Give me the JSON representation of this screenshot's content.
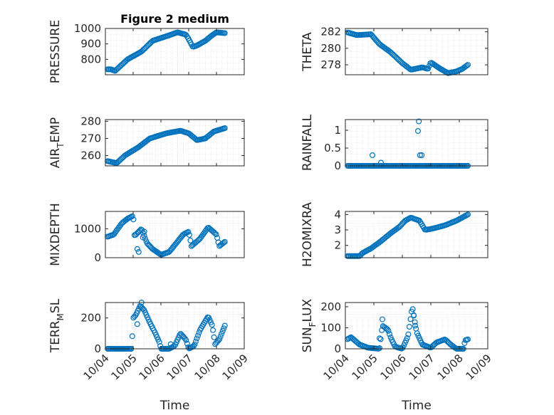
{
  "figure": {
    "background": "#ffffff",
    "marker_color": "#0072BD",
    "marker": "circle-open"
  },
  "chart_data": [
    {
      "type": "scatter",
      "title": "Figure 2 medium",
      "ylabel": "PRESSURE",
      "ylim": [
        700,
        1000
      ],
      "yticks": [
        800,
        900,
        1000
      ],
      "xlim": [
        0,
        5
      ],
      "x_start": 0.08,
      "x_end": 4.3,
      "profile": [
        [
          0,
          735
        ],
        [
          0.2,
          735
        ],
        [
          0.35,
          725
        ],
        [
          0.8,
          800
        ],
        [
          1.3,
          850
        ],
        [
          1.7,
          920
        ],
        [
          2.2,
          950
        ],
        [
          2.6,
          975
        ],
        [
          2.9,
          960
        ],
        [
          3.0,
          930
        ],
        [
          3.15,
          880
        ],
        [
          3.3,
          890
        ],
        [
          3.6,
          920
        ],
        [
          3.8,
          950
        ],
        [
          4.0,
          975
        ],
        [
          4.3,
          970
        ]
      ],
      "show_xticks": false
    },
    {
      "type": "scatter",
      "title": "",
      "ylabel": "THETA",
      "ylim": [
        276.8,
        282.4
      ],
      "yticks": [
        278,
        280,
        282
      ],
      "xlim": [
        0,
        5
      ],
      "x_start": 0.08,
      "x_end": 4.3,
      "profile": [
        [
          0,
          282
        ],
        [
          0.4,
          281.6
        ],
        [
          0.9,
          281.7
        ],
        [
          1.2,
          280.5
        ],
        [
          1.6,
          279.5
        ],
        [
          2.0,
          278.2
        ],
        [
          2.3,
          277.4
        ],
        [
          2.7,
          277.7
        ],
        [
          2.9,
          277.5
        ],
        [
          3.0,
          278.3
        ],
        [
          3.3,
          277.6
        ],
        [
          3.6,
          277
        ],
        [
          3.9,
          277.2
        ],
        [
          4.1,
          277.5
        ],
        [
          4.3,
          278
        ]
      ],
      "show_xticks": false
    },
    {
      "type": "scatter",
      "title": "",
      "ylabel": "AIR_TEMP",
      "ylim": [
        254,
        281
      ],
      "yticks": [
        260,
        270,
        280
      ],
      "xlim": [
        0,
        5
      ],
      "x_start": 0.08,
      "x_end": 4.3,
      "profile": [
        [
          0,
          257
        ],
        [
          0.3,
          256
        ],
        [
          0.4,
          255.5
        ],
        [
          0.7,
          260
        ],
        [
          1.2,
          265
        ],
        [
          1.6,
          270
        ],
        [
          2.2,
          273
        ],
        [
          2.7,
          274.5
        ],
        [
          3.0,
          273
        ],
        [
          3.3,
          269
        ],
        [
          3.6,
          270
        ],
        [
          3.9,
          274
        ],
        [
          4.3,
          276
        ]
      ],
      "show_xticks": false
    },
    {
      "type": "scatter",
      "title": "",
      "ylabel": "RAINFALL",
      "ylim": [
        0,
        1.3
      ],
      "yticks": [
        0,
        0.5,
        1
      ],
      "xlim": [
        0,
        5
      ],
      "x_start": 0.08,
      "x_end": 4.3,
      "profile": [
        [
          0,
          0
        ],
        [
          4.3,
          0
        ]
      ],
      "extra_points": [
        [
          0.95,
          0.3
        ],
        [
          1.25,
          0.09
        ],
        [
          2.58,
          1.25
        ],
        [
          2.55,
          0.98
        ],
        [
          2.62,
          0.3
        ],
        [
          2.68,
          0.3
        ]
      ],
      "show_xticks": false
    },
    {
      "type": "scatter",
      "title": "",
      "ylabel": "MIXDEPTH",
      "ylim": [
        0,
        1600
      ],
      "yticks": [
        0,
        1000
      ],
      "xlim": [
        0,
        5
      ],
      "x_start": 0.08,
      "x_end": 4.3,
      "profile": [
        [
          0,
          700
        ],
        [
          0.3,
          800
        ],
        [
          0.6,
          1200
        ],
        [
          0.8,
          1350
        ],
        [
          1.0,
          1450
        ],
        [
          1.05,
          750
        ],
        [
          1.3,
          1000
        ],
        [
          1.5,
          500
        ],
        [
          1.7,
          300
        ],
        [
          2.0,
          100
        ],
        [
          2.3,
          200
        ],
        [
          2.8,
          800
        ],
        [
          3.0,
          900
        ],
        [
          3.1,
          400
        ],
        [
          3.4,
          650
        ],
        [
          3.7,
          1050
        ],
        [
          4.0,
          800
        ],
        [
          4.1,
          400
        ],
        [
          4.3,
          550
        ]
      ],
      "extra_points": [
        [
          1.15,
          300
        ],
        [
          1.2,
          200
        ],
        [
          1.4,
          900
        ],
        [
          1.35,
          700
        ]
      ],
      "show_xticks": false
    },
    {
      "type": "scatter",
      "title": "",
      "ylabel": "H2OMIXRA",
      "ylim": [
        1.2,
        4.2
      ],
      "yticks": [
        2,
        3,
        4
      ],
      "xlim": [
        0,
        5
      ],
      "x_start": 0.08,
      "x_end": 4.3,
      "profile": [
        [
          0,
          1.3
        ],
        [
          0.5,
          1.3
        ],
        [
          0.6,
          1.5
        ],
        [
          0.9,
          1.8
        ],
        [
          1.2,
          2.2
        ],
        [
          1.6,
          2.8
        ],
        [
          1.9,
          3.2
        ],
        [
          2.1,
          3.6
        ],
        [
          2.3,
          3.8
        ],
        [
          2.6,
          3.6
        ],
        [
          2.8,
          3.0
        ],
        [
          3.1,
          3.1
        ],
        [
          3.5,
          3.3
        ],
        [
          3.9,
          3.6
        ],
        [
          4.3,
          4.0
        ]
      ],
      "show_xticks": false
    },
    {
      "type": "scatter",
      "title": "",
      "ylabel": "TERR_MSL",
      "ylim": [
        0,
        300
      ],
      "yticks": [
        0,
        200
      ],
      "xlim": [
        0,
        5
      ],
      "x_start": 0.08,
      "x_end": 4.3,
      "profile": [
        [
          0,
          0
        ],
        [
          0.95,
          0
        ],
        [
          1.0,
          200
        ],
        [
          1.1,
          220
        ],
        [
          1.25,
          280
        ],
        [
          1.4,
          250
        ],
        [
          1.6,
          170
        ],
        [
          1.8,
          100
        ],
        [
          1.95,
          40
        ],
        [
          2.0,
          0
        ],
        [
          2.3,
          0
        ],
        [
          2.5,
          20
        ],
        [
          2.7,
          100
        ],
        [
          2.9,
          60
        ],
        [
          3.0,
          0
        ],
        [
          3.2,
          20
        ],
        [
          3.4,
          120
        ],
        [
          3.7,
          210
        ],
        [
          3.85,
          150
        ],
        [
          3.95,
          30
        ],
        [
          4.1,
          60
        ],
        [
          4.3,
          150
        ]
      ],
      "extra_points": [
        [
          1.15,
          160
        ],
        [
          1.3,
          300
        ],
        [
          2.35,
          30
        ]
      ],
      "show_xticks": true,
      "xticklabels": [
        "10/04",
        "10/05",
        "10/06",
        "10/07",
        "10/08",
        "10/09"
      ],
      "xlabel": "Time"
    },
    {
      "type": "scatter",
      "title": "",
      "ylabel": "SUN_FLUX",
      "ylim": [
        0,
        220
      ],
      "yticks": [
        0,
        100,
        200
      ],
      "xlim": [
        0,
        5
      ],
      "x_start": 0.08,
      "x_end": 4.3,
      "profile": [
        [
          0,
          40
        ],
        [
          0.2,
          55
        ],
        [
          0.5,
          20
        ],
        [
          0.8,
          5
        ],
        [
          1.2,
          0
        ],
        [
          1.3,
          110
        ],
        [
          1.5,
          90
        ],
        [
          1.6,
          50
        ],
        [
          1.75,
          10
        ],
        [
          2.0,
          0
        ],
        [
          2.2,
          60
        ],
        [
          2.35,
          200
        ],
        [
          2.5,
          80
        ],
        [
          2.7,
          20
        ],
        [
          3.0,
          5
        ],
        [
          3.2,
          30
        ],
        [
          3.5,
          45
        ],
        [
          3.7,
          20
        ],
        [
          3.9,
          0
        ],
        [
          4.15,
          0
        ],
        [
          4.2,
          40
        ],
        [
          4.3,
          45
        ]
      ],
      "extra_points": [
        [
          1.2,
          50
        ],
        [
          1.3,
          140
        ],
        [
          2.4,
          160
        ],
        [
          2.45,
          110
        ]
      ],
      "show_xticks": true,
      "xticklabels": [
        "10/04",
        "10/05",
        "10/06",
        "10/07",
        "10/08",
        "10/09"
      ],
      "xlabel": "Time"
    }
  ]
}
